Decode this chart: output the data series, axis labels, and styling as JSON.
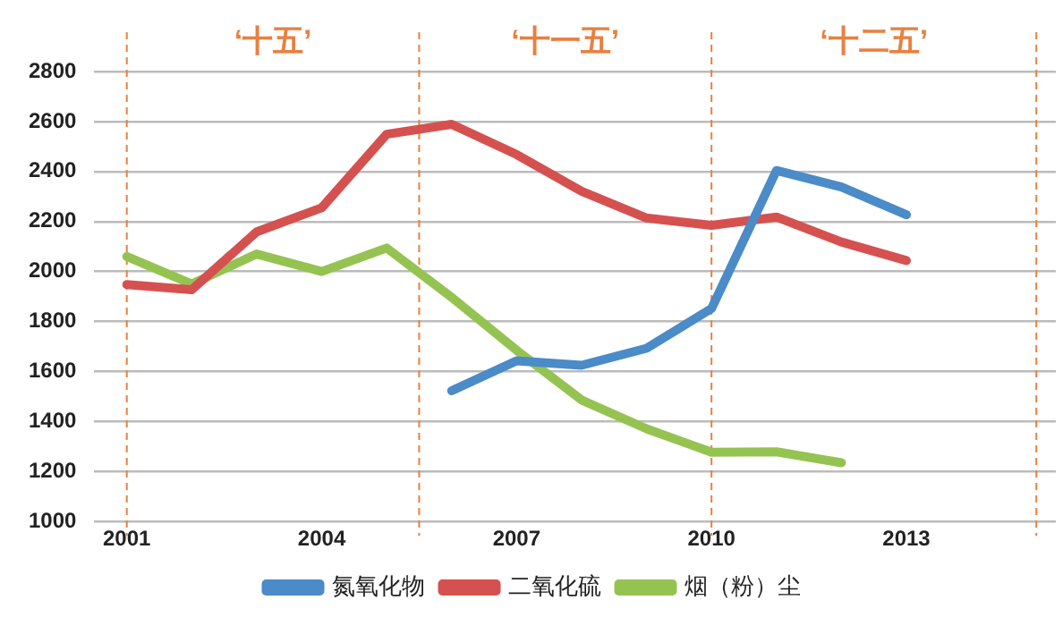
{
  "chart_data": {
    "type": "line",
    "x": [
      2001,
      2002,
      2003,
      2004,
      2005,
      2006,
      2007,
      2008,
      2009,
      2010,
      2011,
      2012,
      2013
    ],
    "series": [
      {
        "name": "氮氧化物",
        "color": "#4a8bc8",
        "values": [
          null,
          null,
          null,
          null,
          null,
          1523,
          1643,
          1625,
          1693,
          1852,
          2404,
          2338,
          2227
        ]
      },
      {
        "name": "二氧化硫",
        "color": "#d5514f",
        "values": [
          1948,
          1927,
          2159,
          2255,
          2549,
          2589,
          2468,
          2321,
          2214,
          2185,
          2218,
          2118,
          2044
        ]
      },
      {
        "name": "烟（粉）尘",
        "color": "#95c352",
        "values": [
          2060,
          1950,
          2070,
          2000,
          2094,
          1897,
          1685,
          1486,
          1371,
          1277,
          1279,
          1235,
          null
        ]
      }
    ],
    "xlim": [
      2000.5,
      2015.3
    ],
    "xticks": [
      2001,
      2004,
      2007,
      2010,
      2013
    ],
    "ylim": [
      1000,
      2800
    ],
    "yticks": [
      1000,
      1200,
      1400,
      1600,
      1800,
      2000,
      2200,
      2400,
      2600,
      2800
    ],
    "grid": "y",
    "legend": "bottom",
    "marker": "none",
    "line_style": "solid",
    "ref_lines": [
      {
        "axis": "x",
        "value": 2001,
        "color": "#e8803f",
        "line_style": "dashed"
      },
      {
        "axis": "x",
        "value": 2005.5,
        "color": "#e8803f",
        "line_style": "dashed"
      },
      {
        "axis": "x",
        "value": 2010,
        "color": "#e8803f",
        "line_style": "dashed"
      },
      {
        "axis": "x",
        "value": 2015,
        "color": "#e8803f",
        "line_style": "dashed"
      }
    ],
    "annotations": [
      "‘十五’",
      "‘十一五’",
      "‘十二五’"
    ]
  }
}
